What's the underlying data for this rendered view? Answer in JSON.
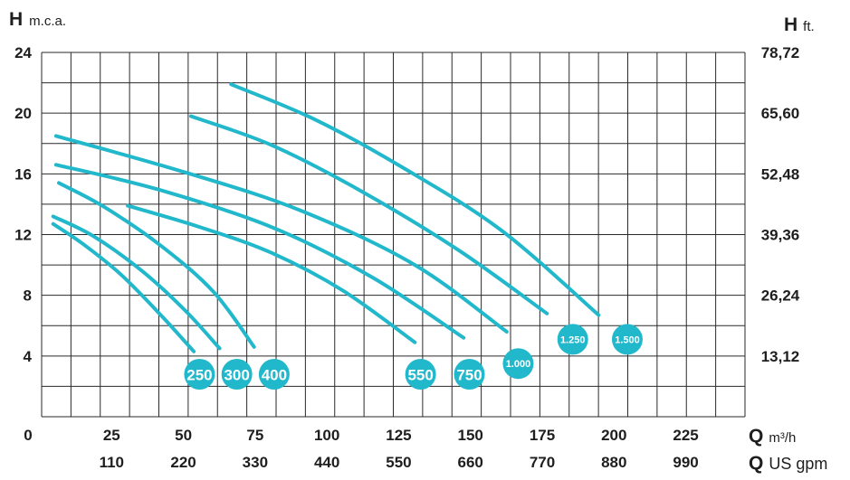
{
  "chart_data": {
    "type": "line",
    "left_axis": {
      "symbol": "H",
      "unit": "m.c.a.",
      "ticks": [
        "24",
        "20",
        "16",
        "12",
        "8",
        "4"
      ],
      "range": [
        0,
        24
      ]
    },
    "right_axis": {
      "symbol": "H",
      "unit": "ft.",
      "ticks": [
        "78,72",
        "65,60",
        "52,48",
        "39,36",
        "26,24",
        "13,12"
      ]
    },
    "origin_label": "0",
    "x_axis": {
      "symbol": "Q",
      "unit": "m³/h",
      "ticks": [
        "25",
        "50",
        "75",
        "100",
        "125",
        "150",
        "175",
        "200",
        "225"
      ],
      "range": [
        0,
        245
      ]
    },
    "x_axis_secondary": {
      "symbol": "Q",
      "unit": "US gpm",
      "ticks": [
        "110",
        "220",
        "330",
        "440",
        "550",
        "660",
        "770",
        "880",
        "990"
      ]
    },
    "grid": true,
    "line_color": "#22b8cc",
    "badge_color": "#22b8cc",
    "series": [
      {
        "badge": "250",
        "points": [
          [
            4,
            12.7
          ],
          [
            15,
            11.3
          ],
          [
            28,
            9.3
          ],
          [
            42,
            6.6
          ],
          [
            53,
            4.3
          ]
        ]
      },
      {
        "badge": "300",
        "points": [
          [
            4,
            13.2
          ],
          [
            18,
            11.9
          ],
          [
            35,
            9.6
          ],
          [
            50,
            7.0
          ],
          [
            62,
            4.5
          ]
        ]
      },
      {
        "badge": "400",
        "points": [
          [
            6,
            15.4
          ],
          [
            22,
            13.8
          ],
          [
            42,
            11.2
          ],
          [
            60,
            8.2
          ],
          [
            74,
            4.6
          ]
        ]
      },
      {
        "badge": "550",
        "points": [
          [
            30,
            13.9
          ],
          [
            55,
            12.5
          ],
          [
            80,
            10.8
          ],
          [
            105,
            8.3
          ],
          [
            130,
            4.9
          ]
        ]
      },
      {
        "badge": "750",
        "points": [
          [
            5,
            16.6
          ],
          [
            40,
            15.0
          ],
          [
            80,
            12.5
          ],
          [
            115,
            9.2
          ],
          [
            147,
            5.2
          ]
        ]
      },
      {
        "badge": "1.000",
        "points": [
          [
            5,
            18.5
          ],
          [
            50,
            16.1
          ],
          [
            90,
            13.6
          ],
          [
            130,
            10.0
          ],
          [
            162,
            5.6
          ]
        ]
      },
      {
        "badge": "1.250",
        "points": [
          [
            52,
            19.8
          ],
          [
            80,
            17.9
          ],
          [
            110,
            15.0
          ],
          [
            145,
            11.0
          ],
          [
            176,
            6.8
          ]
        ]
      },
      {
        "badge": "1.500",
        "points": [
          [
            66,
            21.9
          ],
          [
            95,
            19.6
          ],
          [
            125,
            16.5
          ],
          [
            160,
            12.3
          ],
          [
            194,
            6.7
          ]
        ]
      }
    ],
    "badges": [
      {
        "label": "250",
        "q": 55,
        "h": 2.8
      },
      {
        "label": "300",
        "q": 68,
        "h": 2.8
      },
      {
        "label": "400",
        "q": 81,
        "h": 2.8
      },
      {
        "label": "550",
        "q": 132,
        "h": 2.8
      },
      {
        "label": "750",
        "q": 149,
        "h": 2.8
      },
      {
        "label": "1.000",
        "q": 166,
        "h": 3.5
      },
      {
        "label": "1.250",
        "q": 185,
        "h": 5.1
      },
      {
        "label": "1.500",
        "q": 204,
        "h": 5.1
      }
    ]
  }
}
